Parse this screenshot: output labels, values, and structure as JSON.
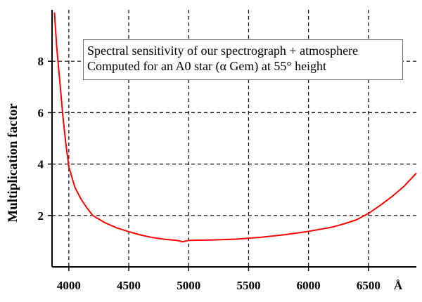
{
  "chart_data": {
    "type": "line",
    "title": "",
    "annotation": [
      "Spectral sensitivity of our spectrograph + atmosphere",
      "Computed for an A0 star (α Gem) at 55° height"
    ],
    "xlabel": "Å",
    "ylabel": "Multiplication factor",
    "xlim": [
      3860,
      6900
    ],
    "ylim": [
      0,
      10
    ],
    "x_ticks": [
      "4000",
      "4500",
      "5000",
      "5500",
      "6000",
      "6500"
    ],
    "y_ticks": [
      "2",
      "4",
      "6",
      "8"
    ],
    "grid": true,
    "series": [
      {
        "color": "#ff0000",
        "x": [
          3880,
          3900,
          3925,
          3950,
          3975,
          4000,
          4050,
          4100,
          4150,
          4200,
          4300,
          4400,
          4500,
          4600,
          4700,
          4800,
          4900,
          4950,
          5000,
          5200,
          5400,
          5600,
          5800,
          6000,
          6200,
          6300,
          6400,
          6500,
          6600,
          6700,
          6800,
          6900
        ],
        "y": [
          9.9,
          8.5,
          7.2,
          5.9,
          4.8,
          3.9,
          3.1,
          2.65,
          2.3,
          2.0,
          1.72,
          1.52,
          1.37,
          1.24,
          1.14,
          1.07,
          1.03,
          0.98,
          1.03,
          1.05,
          1.08,
          1.15,
          1.25,
          1.38,
          1.55,
          1.68,
          1.83,
          2.08,
          2.4,
          2.75,
          3.15,
          3.65
        ]
      }
    ]
  }
}
